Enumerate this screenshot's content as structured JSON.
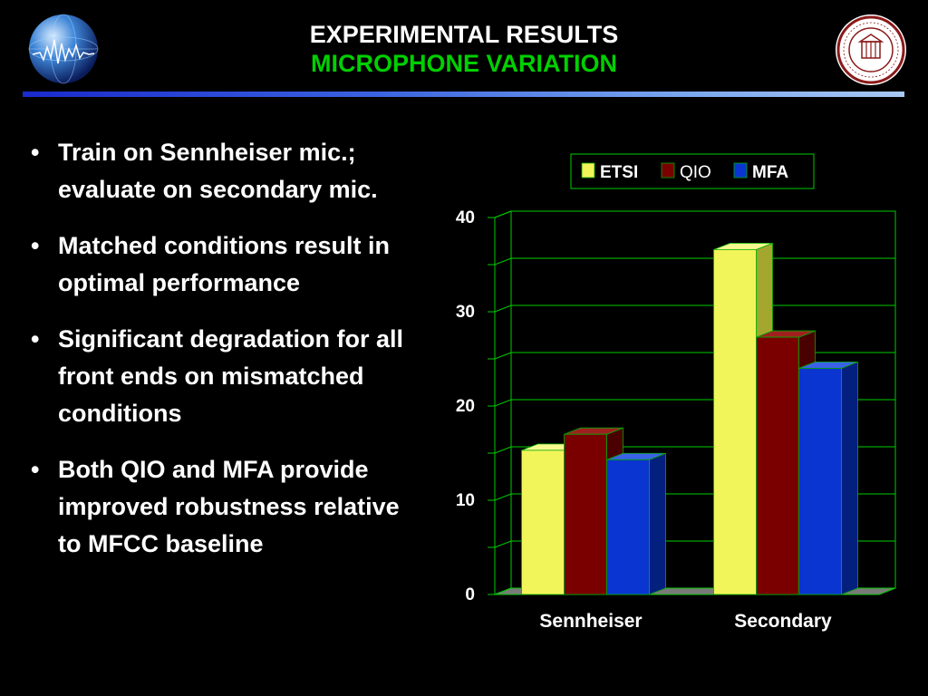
{
  "header": {
    "title_line1": "EXPERIMENTAL RESULTS",
    "title_line2": "MICROPHONE VARIATION"
  },
  "bullets": [
    {
      "text": "Train on Sennheiser mic.; evaluate on secondary mic."
    },
    {
      "text": "Matched conditions result in optimal performance"
    },
    {
      "text": "Significant degradation for all front ends on mismatched conditions"
    },
    {
      "text": "Both QIO and MFA provide improved robustness relative to MFCC baseline"
    }
  ],
  "bullet_glyph": "•",
  "logos": {
    "left": "globe-waveform-icon",
    "right": "university-seal-icon"
  },
  "colors": {
    "title_accent": "#00d000",
    "etsi": "#f2f55a",
    "qio": "#7a0000",
    "mfa": "#0a35d0",
    "chart_lines": "#00cc00"
  },
  "chart_data": {
    "type": "bar",
    "categories": [
      "Sennheiser",
      "Secondary"
    ],
    "series": [
      {
        "name": "ETSI",
        "values": [
          15.3,
          36.6
        ]
      },
      {
        "name": "QIO",
        "values": [
          17.0,
          27.3
        ]
      },
      {
        "name": "MFA",
        "values": [
          14.3,
          24.0
        ]
      }
    ],
    "ylim": [
      0,
      40
    ],
    "yticks": [
      0,
      10,
      20,
      30,
      40
    ],
    "title": "",
    "xlabel": "",
    "ylabel": "",
    "grid": true,
    "legend_position": "top",
    "style": "3d"
  }
}
